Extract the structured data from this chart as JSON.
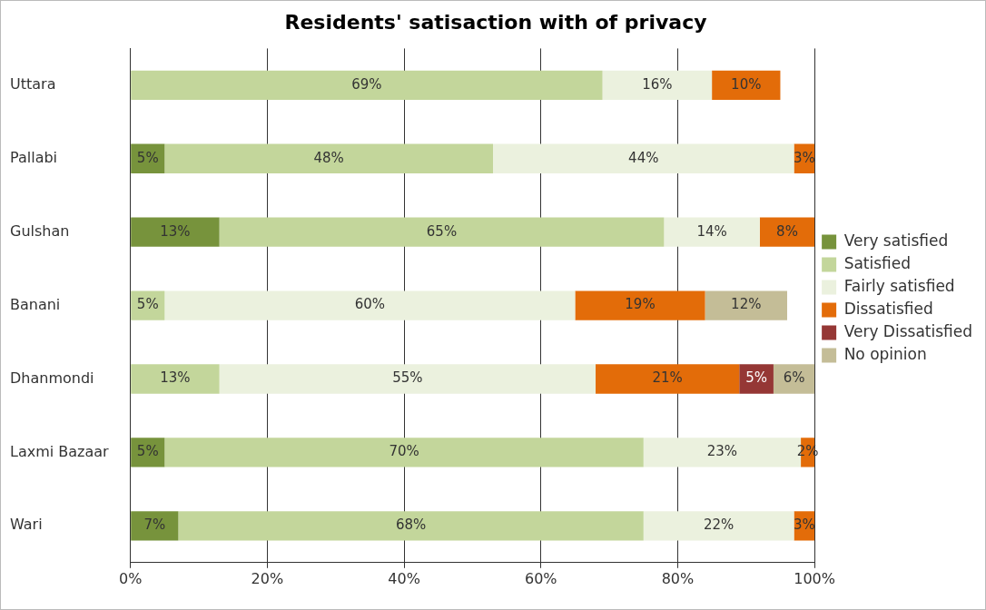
{
  "chart_data": {
    "type": "bar",
    "orientation": "horizontal",
    "stacked": true,
    "title": "Residents' satisaction with of privacy",
    "categories": [
      "Uttara",
      "Pallabi",
      "Gulshan",
      "Banani",
      "Dhanmondi",
      "Laxmi Bazaar",
      "Wari"
    ],
    "series": [
      {
        "name": "Very satisfied",
        "color": "#77933c",
        "values": [
          null,
          5,
          13,
          null,
          null,
          5,
          7
        ],
        "value_labels": [
          null,
          "5%",
          "13%",
          null,
          null,
          "5%",
          "7%"
        ]
      },
      {
        "name": "Satisfied",
        "color": "#c3d69b",
        "values": [
          69,
          48,
          65,
          5,
          13,
          70,
          68
        ],
        "value_labels": [
          "69%",
          "48%",
          "65%",
          "5%",
          "13%",
          "70%",
          "68%"
        ]
      },
      {
        "name": "Fairly satisfied",
        "color": "#ebf1de",
        "values": [
          16,
          44,
          14,
          60,
          55,
          23,
          22
        ],
        "value_labels": [
          "16%",
          "44%",
          "14%",
          "60%",
          "55%",
          "23%",
          "22%"
        ]
      },
      {
        "name": "Dissatisfied",
        "color": "#e36c09",
        "values": [
          10,
          3,
          8,
          19,
          21,
          2,
          3
        ],
        "value_labels": [
          "10%",
          "3%",
          "8%",
          "19%",
          "21%",
          "2%",
          "3%"
        ]
      },
      {
        "name": "Very Dissatisfied",
        "color": "#953735",
        "values": [
          null,
          null,
          null,
          null,
          5,
          null,
          null
        ],
        "value_labels": [
          null,
          null,
          null,
          null,
          "5%",
          null,
          null
        ]
      },
      {
        "name": "No opinion",
        "color": "#c4bd97",
        "values": [
          null,
          null,
          null,
          12,
          6,
          null,
          null
        ],
        "value_labels": [
          null,
          null,
          null,
          "12%",
          "6%",
          null,
          null
        ]
      }
    ],
    "xlim": [
      0,
      100
    ],
    "xticks": [
      {
        "value": 0,
        "label": "0%"
      },
      {
        "value": 20,
        "label": "20%"
      },
      {
        "value": 40,
        "label": "40%"
      },
      {
        "value": 60,
        "label": "60%"
      },
      {
        "value": 80,
        "label": "80%"
      },
      {
        "value": 100,
        "label": "100%"
      }
    ],
    "grid": "x",
    "legend": "right"
  }
}
